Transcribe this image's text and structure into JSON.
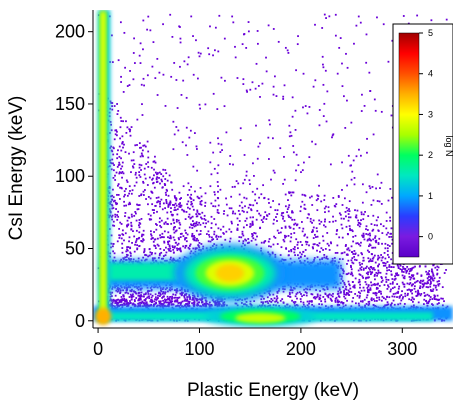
{
  "chart_data": {
    "type": "heatmap",
    "title": "",
    "xlabel": "Plastic Energy (keV)",
    "ylabel": "CsI Energy (keV)",
    "xlim": [
      -5,
      350
    ],
    "ylim": [
      -5,
      215
    ],
    "xticks": [
      0,
      100,
      200,
      300
    ],
    "yticks": [
      0,
      50,
      100,
      150,
      200
    ],
    "grid": false,
    "colorbar": {
      "label": "log N",
      "ticks": [
        0,
        1,
        2,
        3,
        4,
        5
      ],
      "range": [
        -0.5,
        5
      ],
      "colormap": [
        "#5a00c8",
        "#7a1be0",
        "#2a3cff",
        "#00a8ff",
        "#00e8c0",
        "#00ff60",
        "#a8ff00",
        "#ffff00",
        "#ffb000",
        "#ff5000",
        "#ff0000",
        "#a00000"
      ]
    },
    "features": [
      {
        "name": "vertical band near zero plastic energy",
        "x_center": 5,
        "y_range": [
          0,
          215
        ],
        "peak_logN": 3.5
      },
      {
        "name": "low CsI band",
        "y_center": 5,
        "x_range": [
          0,
          350
        ],
        "peak_logN": 3.2
      },
      {
        "name": "main peak",
        "x_center": 130,
        "y_center": 32,
        "peak_logN": 3.5
      },
      {
        "name": "secondary peak",
        "x_center": 160,
        "y_center": 3,
        "peak_logN": 3.0
      },
      {
        "name": "horizontal band",
        "y_center": 30,
        "x_range": [
          0,
          340
        ],
        "peak_logN": 1.5
      }
    ]
  }
}
